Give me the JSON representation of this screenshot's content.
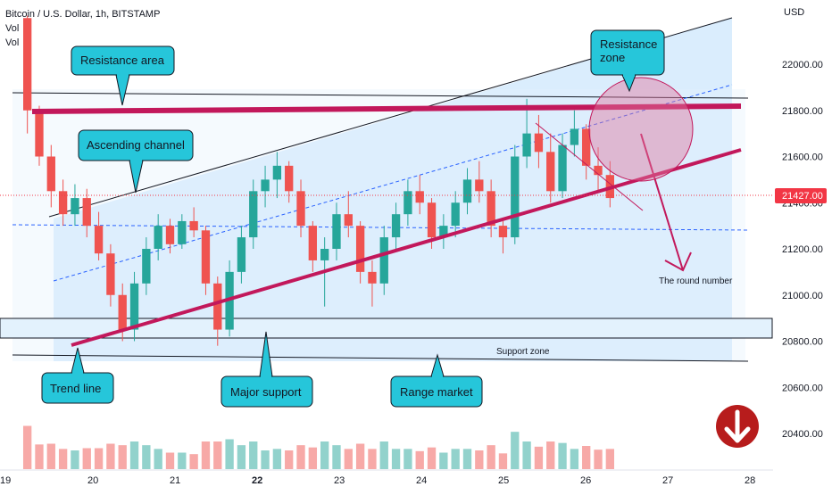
{
  "header": {
    "title": "Bitcoin / U.S. Dollar, 1h, BITSTAMP",
    "vol_label_1": "Vol",
    "vol_label_2": "Vol"
  },
  "chart_data": {
    "type": "candlestick",
    "currency": "USD",
    "y_ticks": [
      22000,
      21800,
      21600,
      21400,
      21200,
      21000,
      20800,
      20600,
      20400
    ],
    "ylim": [
      20300,
      22230
    ],
    "x_ticks": [
      {
        "label": "19",
        "bold": false
      },
      {
        "label": "20",
        "bold": false
      },
      {
        "label": "21",
        "bold": false
      },
      {
        "label": "22",
        "bold": true
      },
      {
        "label": "23",
        "bold": false
      },
      {
        "label": "24",
        "bold": false
      },
      {
        "label": "25",
        "bold": false
      },
      {
        "label": "26",
        "bold": false
      },
      {
        "label": "27",
        "bold": false
      },
      {
        "label": "28",
        "bold": false
      }
    ],
    "last_price": "21427.00",
    "last_price_value": 21427,
    "colors": {
      "up": "#26a69a",
      "down": "#ef5350",
      "accent_red": "#c2185b",
      "callout_fill": "#26c6da",
      "channel_fill": "#bbdefb",
      "price_tag": "#f23645",
      "brand_red": "#b71c1c"
    },
    "annotations": {
      "resistance_area": "Resistance area",
      "resistance_zone": "Resistance\nzone",
      "ascending_channel": "Ascending channel",
      "trend_line": "Trend line",
      "major_support": "Major support",
      "range_market": "Range market",
      "support_zone": "Support zone",
      "round_number": "The round number"
    },
    "levels": {
      "resistance_area": [
        21780,
        21860
      ],
      "support_zone": [
        20800,
        20900
      ],
      "support_line_low": 20710
    },
    "candles_approx": [
      [
        22200,
        22210,
        21700,
        21800
      ],
      [
        21800,
        21820,
        21560,
        21600
      ],
      [
        21600,
        21650,
        21380,
        21450
      ],
      [
        21450,
        21500,
        21300,
        21350
      ],
      [
        21350,
        21480,
        21300,
        21420
      ],
      [
        21420,
        21460,
        21250,
        21300
      ],
      [
        21300,
        21360,
        21150,
        21180
      ],
      [
        21180,
        21220,
        20950,
        21000
      ],
      [
        21000,
        21050,
        20800,
        20850
      ],
      [
        20850,
        21100,
        20800,
        21050
      ],
      [
        21050,
        21250,
        21000,
        21200
      ],
      [
        21200,
        21350,
        21150,
        21300
      ],
      [
        21300,
        21330,
        21180,
        21220
      ],
      [
        21220,
        21350,
        21200,
        21320
      ],
      [
        21320,
        21380,
        21250,
        21280
      ],
      [
        21280,
        21300,
        21000,
        21050
      ],
      [
        21050,
        21080,
        20780,
        20850
      ],
      [
        20850,
        21150,
        20820,
        21100
      ],
      [
        21100,
        21300,
        21050,
        21250
      ],
      [
        21250,
        21500,
        21200,
        21450
      ],
      [
        21450,
        21560,
        21380,
        21500
      ],
      [
        21500,
        21620,
        21420,
        21560
      ],
      [
        21560,
        21580,
        21400,
        21450
      ],
      [
        21450,
        21500,
        21250,
        21300
      ],
      [
        21300,
        21320,
        21100,
        21150
      ],
      [
        21150,
        21250,
        20950,
        21200
      ],
      [
        21200,
        21400,
        21150,
        21350
      ],
      [
        21350,
        21450,
        21250,
        21300
      ],
      [
        21300,
        21320,
        21050,
        21100
      ],
      [
        21100,
        21150,
        20950,
        21050
      ],
      [
        21050,
        21300,
        21000,
        21250
      ],
      [
        21250,
        21400,
        21200,
        21350
      ],
      [
        21350,
        21500,
        21300,
        21450
      ],
      [
        21450,
        21520,
        21350,
        21400
      ],
      [
        21400,
        21420,
        21200,
        21250
      ],
      [
        21250,
        21350,
        21200,
        21300
      ],
      [
        21300,
        21450,
        21250,
        21400
      ],
      [
        21400,
        21550,
        21350,
        21500
      ],
      [
        21500,
        21580,
        21400,
        21450
      ],
      [
        21450,
        21500,
        21250,
        21300
      ],
      [
        21300,
        21320,
        21180,
        21250
      ],
      [
        21250,
        21650,
        21220,
        21600
      ],
      [
        21600,
        21850,
        21550,
        21700
      ],
      [
        21700,
        21780,
        21550,
        21620
      ],
      [
        21620,
        21700,
        21400,
        21450
      ],
      [
        21450,
        21700,
        21420,
        21650
      ],
      [
        21650,
        21800,
        21600,
        21720
      ],
      [
        21720,
        21740,
        21500,
        21560
      ],
      [
        21560,
        21640,
        21450,
        21520
      ],
      [
        21520,
        21580,
        21380,
        21420
      ]
    ]
  }
}
